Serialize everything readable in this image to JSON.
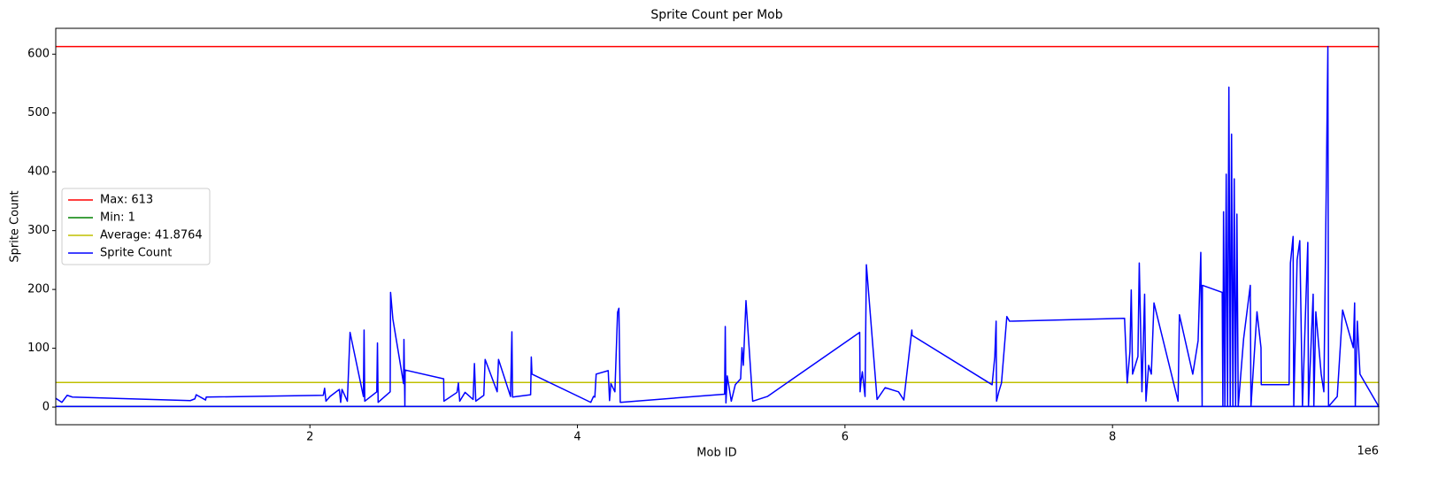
{
  "chart_data": {
    "type": "line",
    "title": "Sprite Count per Mob",
    "x_label": "Mob ID",
    "y_label": "Sprite Count",
    "x_offset_text": "1e6",
    "xlim": [
      100000,
      9990000
    ],
    "ylim": [
      -30,
      644
    ],
    "xticks": [
      {
        "value": 2000000,
        "label": "2"
      },
      {
        "value": 4000000,
        "label": "4"
      },
      {
        "value": 6000000,
        "label": "6"
      },
      {
        "value": 8000000,
        "label": "8"
      }
    ],
    "yticks": [
      0,
      100,
      200,
      300,
      400,
      500,
      600
    ],
    "grid": false,
    "legend": "center left",
    "hlines": [
      {
        "name": "Max: 613",
        "value": 613,
        "color": "#ff0000"
      },
      {
        "name": "Min: 1",
        "value": 1,
        "color": "#008000"
      },
      {
        "name": "Average: 41.8764",
        "value": 41.8764,
        "color": "#bfbf00"
      }
    ],
    "series": [
      {
        "name": "Sprite Count",
        "color": "#0000ff",
        "x": [
          100000,
          146000,
          185000,
          225000,
          1106000,
          1140000,
          1150000,
          1220000,
          1225000,
          2100000,
          2110000,
          2120000,
          2150000,
          2220000,
          2230000,
          2240000,
          2280000,
          2300000,
          2400000,
          2405000,
          2410000,
          2500000,
          2505000,
          2510000,
          2600000,
          2603000,
          2620000,
          2700000,
          2703000,
          2710000,
          2712000,
          3000000,
          3002000,
          3100000,
          3110000,
          3120000,
          3160000,
          3220000,
          3230000,
          3240000,
          3300000,
          3310000,
          3400000,
          3410000,
          3500000,
          3510000,
          3515000,
          3650000,
          3655000,
          3660000,
          4100000,
          4120000,
          4130000,
          4140000,
          4230000,
          4240000,
          4250000,
          4280000,
          4300000,
          4310000,
          4320000,
          5100000,
          5105000,
          5110000,
          5120000,
          5150000,
          5180000,
          5220000,
          5230000,
          5240000,
          5260000,
          5310000,
          5420000,
          6110000,
          6113000,
          6120000,
          6130000,
          6150000,
          6160000,
          6240000,
          6300000,
          6400000,
          6440000,
          6500000,
          6502000,
          7100000,
          7120000,
          7130000,
          7133000,
          7150000,
          7170000,
          7210000,
          7230000,
          8090000,
          8110000,
          8130000,
          8140000,
          8150000,
          8190000,
          8200000,
          8220000,
          8240000,
          8250000,
          8270000,
          8290000,
          8310000,
          8490000,
          8500000,
          8600000,
          8640000,
          8660000,
          8670000,
          8672000,
          8820000,
          8825000,
          8830000,
          8840000,
          8850000,
          8860000,
          8870000,
          8880000,
          8890000,
          8900000,
          8910000,
          8920000,
          8930000,
          8940000,
          8980000,
          9030000,
          9035000,
          9080000,
          9110000,
          9112000,
          9320000,
          9330000,
          9350000,
          9355000,
          9380000,
          9400000,
          9420000,
          9460000,
          9465000,
          9500000,
          9505000,
          9520000,
          9560000,
          9580000,
          9600000,
          9610000,
          9615000,
          9680000,
          9720000,
          9800000,
          9810000,
          9815000,
          9830000,
          9850000,
          9990000,
          100000
        ],
        "values": [
          15,
          8,
          20,
          17,
          11,
          14,
          21,
          12,
          17,
          20,
          32,
          10,
          18,
          30,
          8,
          30,
          10,
          127,
          18,
          131,
          10,
          26,
          109,
          8,
          26,
          195,
          150,
          40,
          115,
          1,
          63,
          48,
          10,
          25,
          41,
          10,
          25,
          13,
          74,
          10,
          20,
          81,
          26,
          81,
          18,
          128,
          17,
          21,
          85,
          56,
          8,
          18,
          17,
          56,
          62,
          11,
          40,
          26,
          161,
          168,
          8,
          22,
          137,
          7,
          53,
          10,
          38,
          48,
          101,
          71,
          181,
          10,
          18,
          127,
          26,
          44,
          60,
          18,
          242,
          13,
          33,
          26,
          12,
          131,
          122,
          38,
          86,
          146,
          10,
          26,
          41,
          154,
          146,
          151,
          41,
          94,
          199,
          56,
          86,
          245,
          26,
          192,
          10,
          71,
          56,
          177,
          10,
          157,
          56,
          113,
          263,
          1,
          207,
          195,
          1,
          332,
          1,
          396,
          1,
          544,
          1,
          464,
          1,
          388,
          1,
          328,
          1,
          116,
          207,
          1,
          162,
          101,
          38,
          38,
          245,
          290,
          1,
          250,
          283,
          1,
          280,
          1,
          192,
          1,
          162,
          56,
          26,
          414,
          613,
          1,
          18,
          165,
          101,
          177,
          1,
          146,
          56,
          1,
          1
        ]
      }
    ]
  }
}
